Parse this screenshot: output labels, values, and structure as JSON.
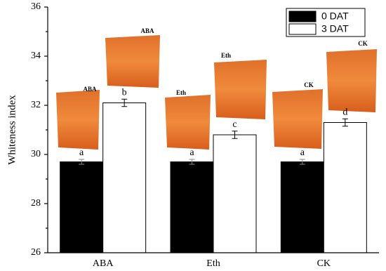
{
  "chart_data": {
    "type": "bar",
    "y_label": "Whiteness index",
    "categories": [
      "ABA",
      "Eth",
      "CK"
    ],
    "series": [
      {
        "name": "0 DAT",
        "color": "#000000",
        "values": [
          29.7,
          29.7,
          29.7
        ],
        "errors": [
          0.1,
          0.1,
          0.1
        ],
        "letters": [
          "a",
          "a",
          "a"
        ]
      },
      {
        "name": "3 DAT",
        "color": "#ffffff",
        "values": [
          32.1,
          30.8,
          31.3
        ],
        "errors": [
          0.15,
          0.15,
          0.15
        ],
        "letters": [
          "b",
          "c",
          "d"
        ]
      }
    ],
    "photo_labels": [
      "ABA",
      "ABA",
      "Eth",
      "Eth",
      "CK",
      "CK"
    ],
    "ylim": [
      26,
      36
    ],
    "yticks": [
      26,
      28,
      30,
      32,
      34,
      36
    ],
    "legend": "top-right"
  }
}
